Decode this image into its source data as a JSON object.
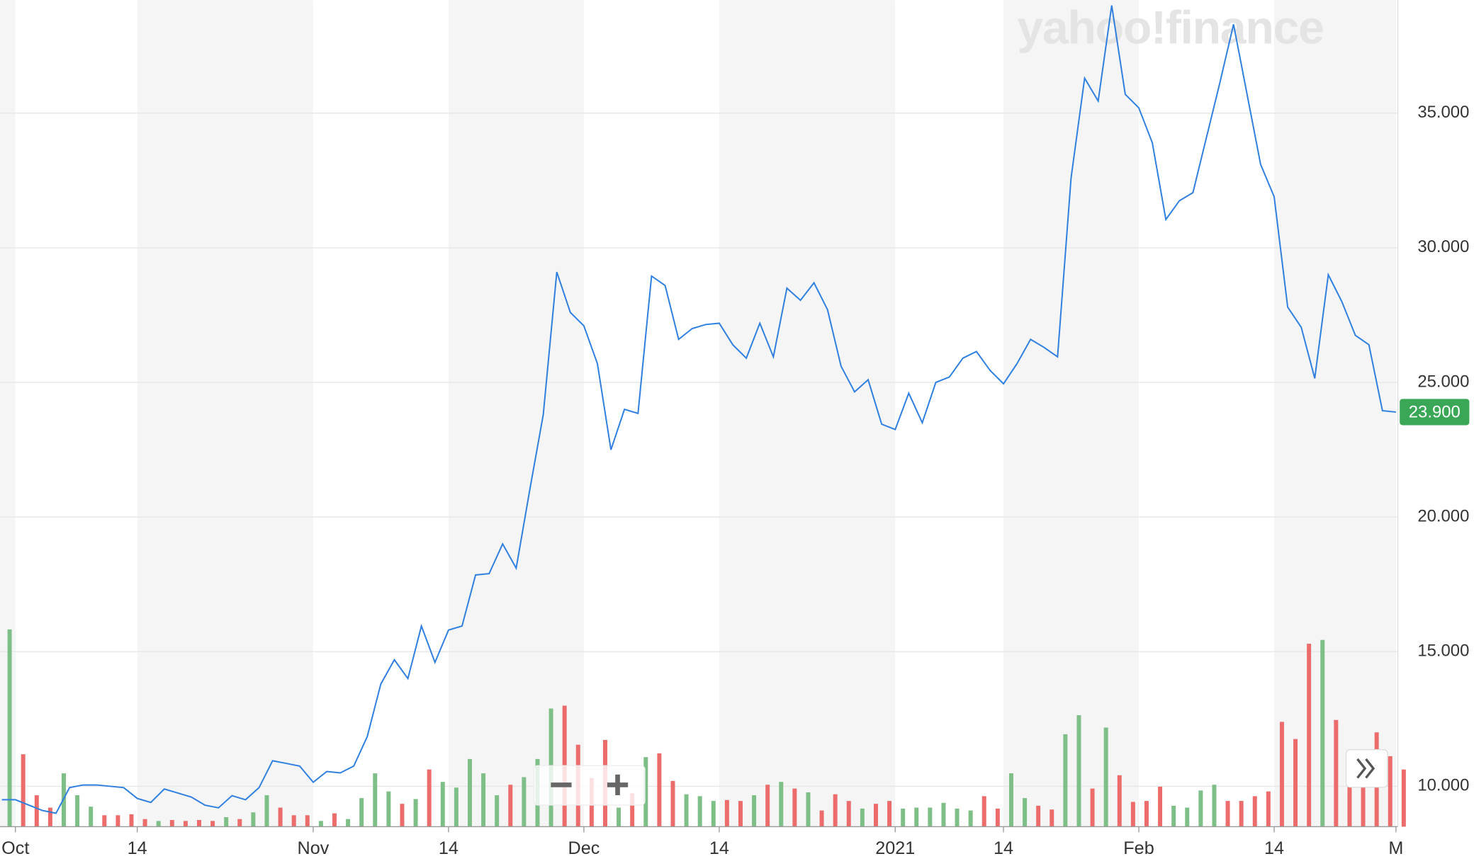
{
  "chart_data": {
    "type": "line",
    "watermark": "yahoo!finance",
    "categories": [
      null,
      "Oct",
      null,
      null,
      null,
      null,
      null,
      null,
      null,
      null,
      "14",
      null,
      null,
      null,
      null,
      null,
      null,
      null,
      null,
      null,
      null,
      null,
      null,
      "Nov",
      null,
      null,
      null,
      null,
      null,
      null,
      null,
      null,
      null,
      "14",
      null,
      null,
      null,
      null,
      null,
      null,
      null,
      null,
      null,
      "Dec",
      null,
      null,
      null,
      null,
      null,
      null,
      null,
      null,
      null,
      "14",
      null,
      null,
      null,
      null,
      null,
      null,
      null,
      null,
      null,
      null,
      null,
      null,
      "2021",
      null,
      null,
      null,
      null,
      null,
      null,
      null,
      "14",
      null,
      null,
      null,
      null,
      null,
      null,
      null,
      null,
      null,
      "Feb",
      null,
      null,
      null,
      null,
      null,
      null,
      null,
      null,
      null,
      "14",
      null,
      null,
      null,
      null,
      null,
      null,
      null,
      null,
      "M"
    ],
    "values": [
      9.5,
      9.5,
      9.3,
      9.1,
      9.0,
      9.95,
      10.05,
      10.05,
      10.0,
      9.95,
      9.55,
      9.4,
      9.9,
      9.75,
      9.6,
      9.3,
      9.2,
      9.65,
      9.5,
      9.95,
      10.95,
      10.85,
      10.75,
      10.15,
      10.55,
      10.5,
      10.75,
      11.85,
      13.8,
      14.7,
      14.0,
      15.95,
      14.6,
      15.8,
      15.95,
      17.85,
      17.9,
      19.0,
      18.1,
      21.0,
      23.8,
      29.1,
      27.6,
      27.1,
      25.7,
      22.5,
      24.0,
      23.85,
      28.95,
      28.6,
      26.6,
      27.0,
      27.15,
      27.2,
      26.4,
      25.9,
      27.2,
      25.95,
      28.5,
      28.05,
      28.7,
      27.7,
      25.6,
      24.65,
      25.1,
      23.45,
      23.25,
      24.6,
      23.5,
      25.0,
      25.2,
      25.9,
      26.15,
      25.45,
      24.95,
      25.7,
      26.6,
      26.3,
      25.95,
      32.6,
      36.3,
      35.45,
      39.0,
      35.7,
      35.2,
      33.9,
      31.05,
      31.75,
      32.05,
      34.1,
      36.15,
      38.3,
      35.7,
      33.1,
      31.9,
      27.8,
      27.05,
      25.15,
      29.0,
      28.0,
      26.75,
      26.4,
      23.95,
      23.9
    ],
    "color": "#2f7fe0",
    "volume": {
      "values": [
        207,
        76,
        33,
        20,
        56,
        33,
        21,
        12,
        12,
        13,
        8,
        6,
        7,
        6,
        7,
        6,
        10,
        8,
        15,
        33,
        20,
        12,
        12,
        6,
        14,
        8,
        30,
        56,
        37,
        24,
        29,
        60,
        47,
        41,
        71,
        56,
        33,
        44,
        52,
        71,
        124,
        127,
        86,
        51,
        91,
        20,
        35,
        73,
        77,
        48,
        34,
        32,
        27,
        28,
        27,
        33,
        44,
        47,
        40,
        36,
        17,
        34,
        27,
        19,
        24,
        27,
        19,
        20,
        20,
        25,
        19,
        17,
        32,
        19,
        56,
        30,
        22,
        18,
        97,
        117,
        40,
        104,
        54,
        26,
        27,
        42,
        22,
        20,
        38,
        44,
        27,
        27,
        32,
        37,
        110,
        92,
        192,
        196,
        112,
        80,
        62,
        99,
        74,
        60
      ],
      "colors": [
        "#7dbf86",
        "#ec6b6b",
        "#ec6b6b",
        "#ec6b6b",
        "#7dbf86",
        "#7dbf86",
        "#7dbf86",
        "#ec6b6b",
        "#ec6b6b",
        "#ec6b6b",
        "#ec6b6b",
        "#7dbf86",
        "#ec6b6b",
        "#ec6b6b",
        "#ec6b6b",
        "#ec6b6b",
        "#7dbf86",
        "#ec6b6b",
        "#7dbf86",
        "#7dbf86",
        "#ec6b6b",
        "#ec6b6b",
        "#ec6b6b",
        "#7dbf86",
        "#ec6b6b",
        "#7dbf86",
        "#7dbf86",
        "#7dbf86",
        "#7dbf86",
        "#ec6b6b",
        "#7dbf86",
        "#ec6b6b",
        "#7dbf86",
        "#7dbf86",
        "#7dbf86",
        "#7dbf86",
        "#7dbf86",
        "#ec6b6b",
        "#7dbf86",
        "#7dbf86",
        "#7dbf86",
        "#ec6b6b",
        "#ec6b6b",
        "#ec6b6b",
        "#ec6b6b",
        "#7dbf86",
        "#ec6b6b",
        "#7dbf86",
        "#ec6b6b",
        "#ec6b6b",
        "#7dbf86",
        "#7dbf86",
        "#7dbf86",
        "#ec6b6b",
        "#ec6b6b",
        "#7dbf86",
        "#ec6b6b",
        "#7dbf86",
        "#ec6b6b",
        "#7dbf86",
        "#ec6b6b",
        "#ec6b6b",
        "#ec6b6b",
        "#7dbf86",
        "#ec6b6b",
        "#ec6b6b",
        "#7dbf86",
        "#7dbf86",
        "#7dbf86",
        "#7dbf86",
        "#7dbf86",
        "#7dbf86",
        "#ec6b6b",
        "#ec6b6b",
        "#7dbf86",
        "#7dbf86",
        "#ec6b6b",
        "#ec6b6b",
        "#7dbf86",
        "#7dbf86",
        "#ec6b6b",
        "#7dbf86",
        "#ec6b6b",
        "#ec6b6b",
        "#ec6b6b",
        "#ec6b6b",
        "#7dbf86",
        "#7dbf86",
        "#7dbf86",
        "#7dbf86",
        "#ec6b6b",
        "#ec6b6b",
        "#ec6b6b",
        "#ec6b6b",
        "#ec6b6b",
        "#ec6b6b",
        "#ec6b6b",
        "#7dbf86",
        "#ec6b6b",
        "#ec6b6b",
        "#ec6b6b",
        "#ec6b6b",
        "#ec6b6b",
        "#ec6b6b"
      ]
    },
    "price_tag": {
      "value": 23.9,
      "label": "23.900",
      "color": "#3aa757"
    },
    "ylim": [
      8.5,
      39.2
    ],
    "yticks": [
      {
        "value": 10,
        "label": "10.000"
      },
      {
        "value": 15,
        "label": "15.000"
      },
      {
        "value": 20,
        "label": "20.000"
      },
      {
        "value": 25,
        "label": "25.000"
      },
      {
        "value": 30,
        "label": "30.000"
      },
      {
        "value": 35,
        "label": "35.000"
      }
    ],
    "grid": true
  }
}
